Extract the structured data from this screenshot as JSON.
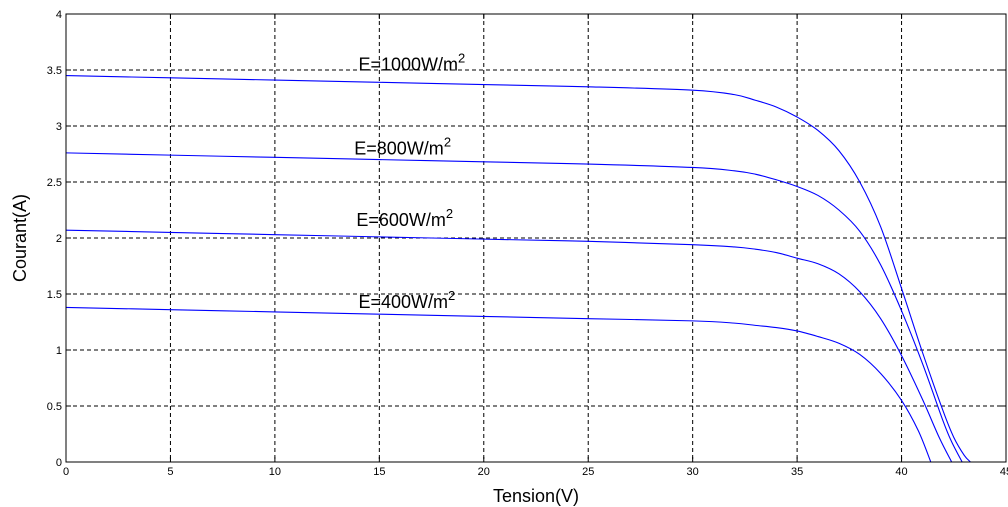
{
  "chart_data": {
    "type": "line",
    "xlabel": "Tension(V)",
    "ylabel": "Courant(A)",
    "xlim": [
      0,
      45
    ],
    "ylim": [
      0,
      4
    ],
    "xticks": [
      0,
      5,
      10,
      15,
      20,
      25,
      30,
      35,
      40,
      45
    ],
    "yticks": [
      0,
      0.5,
      1,
      1.5,
      2,
      2.5,
      3,
      3.5,
      4
    ],
    "xtick_labels": [
      "0",
      "5",
      "10",
      "15",
      "20",
      "25",
      "30",
      "35",
      "40",
      "45"
    ],
    "ytick_labels": [
      "0",
      "0.5",
      "1",
      "1.5",
      "2",
      "2.5",
      "3",
      "3.5",
      "4"
    ],
    "grid": true,
    "line_color": "#0000ff",
    "series": [
      {
        "name": "E=1000W/m2",
        "x": [
          0,
          5,
          10,
          15,
          20,
          25,
          30,
          32,
          33,
          34,
          35,
          36,
          37,
          38,
          39,
          40,
          41,
          42,
          42.5,
          43,
          43.3
        ],
        "values": [
          3.45,
          3.43,
          3.41,
          3.39,
          3.37,
          3.35,
          3.32,
          3.28,
          3.23,
          3.17,
          3.08,
          2.96,
          2.78,
          2.5,
          2.1,
          1.55,
          0.98,
          0.45,
          0.22,
          0.06,
          0
        ]
      },
      {
        "name": "E=800W/m2",
        "x": [
          0,
          5,
          10,
          15,
          20,
          25,
          30,
          32,
          33,
          34,
          35,
          36,
          37,
          38,
          39,
          40,
          41,
          42,
          42.4,
          42.9
        ],
        "values": [
          2.76,
          2.74,
          2.72,
          2.7,
          2.68,
          2.66,
          2.63,
          2.6,
          2.57,
          2.52,
          2.46,
          2.38,
          2.25,
          2.06,
          1.76,
          1.35,
          0.88,
          0.36,
          0.18,
          0
        ]
      },
      {
        "name": "E=600W/m2",
        "x": [
          0,
          5,
          10,
          15,
          20,
          25,
          30,
          32,
          33,
          34,
          35,
          36,
          37,
          38,
          39,
          40,
          41,
          41.8,
          42.4
        ],
        "values": [
          2.07,
          2.05,
          2.03,
          2.01,
          1.99,
          1.97,
          1.94,
          1.92,
          1.9,
          1.87,
          1.82,
          1.77,
          1.68,
          1.52,
          1.28,
          0.95,
          0.56,
          0.22,
          0
        ]
      },
      {
        "name": "E=400W/m2",
        "x": [
          0,
          5,
          10,
          15,
          20,
          25,
          30,
          32,
          33,
          34,
          35,
          36,
          37,
          38,
          39,
          40,
          40.8,
          41.4
        ],
        "values": [
          1.38,
          1.36,
          1.34,
          1.32,
          1.3,
          1.28,
          1.26,
          1.24,
          1.22,
          1.2,
          1.17,
          1.12,
          1.06,
          0.96,
          0.79,
          0.55,
          0.28,
          0
        ]
      }
    ],
    "annotations": [
      {
        "base": "E=1000W/m",
        "sup": "2",
        "x": 14,
        "y": 3.47
      },
      {
        "base": "E=800W/m",
        "sup": "2",
        "x": 13.8,
        "y": 2.72
      },
      {
        "base": "E=600W/m",
        "sup": "2",
        "x": 13.9,
        "y": 2.08
      },
      {
        "base": "E=400W/m",
        "sup": "2",
        "x": 14,
        "y": 1.35
      }
    ]
  }
}
